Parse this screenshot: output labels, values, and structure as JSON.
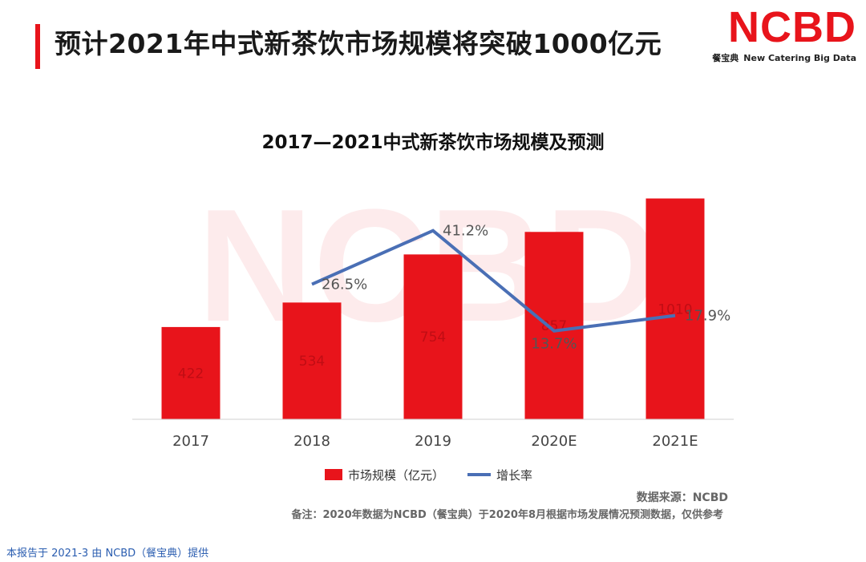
{
  "page": {
    "title": "预计2021年中式新茶饮市场规模将突破1000亿元",
    "source": "数据来源：NCBD",
    "note": "备注：2020年数据为NCBD（餐宝典）于2020年8月根据市场发展情况预测数据，仅供参考",
    "footer": "本报告于 2021-3 由 NCBD（餐宝典）提供"
  },
  "brand": {
    "logo": "NCBD",
    "cn": "餐宝典",
    "en": "New Catering Big Data"
  },
  "colors": {
    "accent": "#e8141b",
    "line": "#4a6fb5"
  },
  "chart_data": {
    "type": "bar",
    "title": "2017—2021中式新茶饮市场规模及预测",
    "categories": [
      "2017",
      "2018",
      "2019",
      "2020E",
      "2021E"
    ],
    "series": [
      {
        "name": "市场规模（亿元）",
        "kind": "bar",
        "values": [
          422,
          534,
          754,
          857,
          1010
        ],
        "labels": [
          "422",
          "534",
          "754",
          "857",
          "1010"
        ]
      },
      {
        "name": "增长率",
        "kind": "line",
        "values": [
          null,
          26.5,
          41.2,
          13.7,
          17.9
        ],
        "labels": [
          "",
          "26.5%",
          "41.2%",
          "13.7%",
          "17.9%"
        ]
      }
    ],
    "ylim": [
      0,
      1100
    ],
    "y2lim": [
      0,
      55
    ],
    "grid": false,
    "legend": "bottom"
  }
}
